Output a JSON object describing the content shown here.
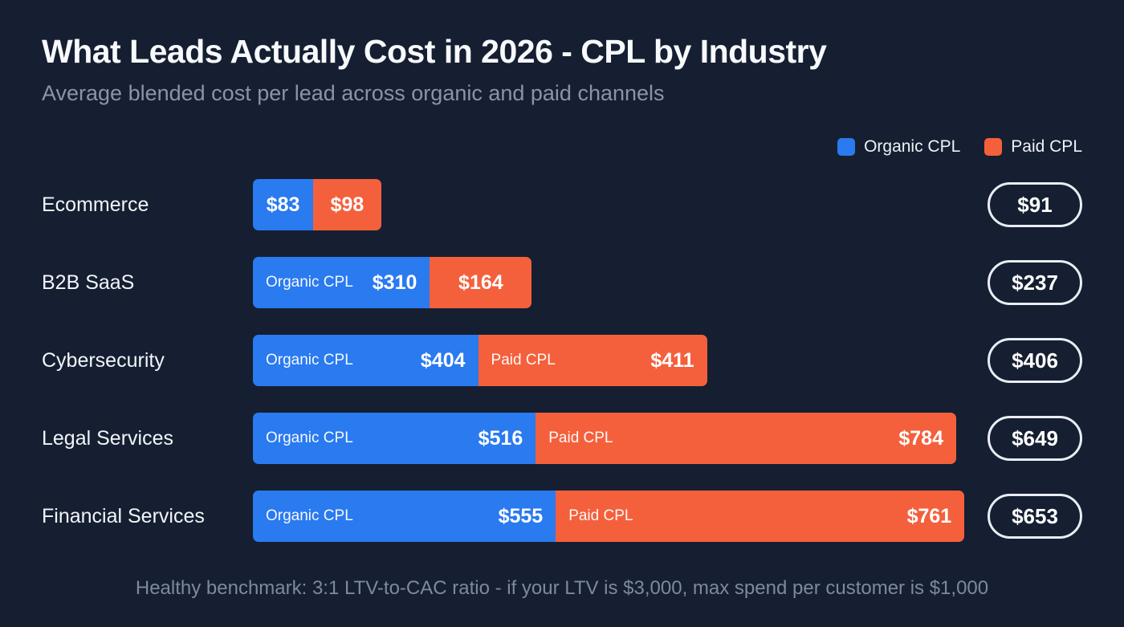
{
  "header": {
    "title": "What Leads Actually Cost in 2026 - CPL by Industry",
    "subtitle": "Average blended cost per lead across organic and paid channels"
  },
  "legend": [
    {
      "label": "Organic CPL",
      "color": "#2a7af0"
    },
    {
      "label": "Paid CPL",
      "color": "#f4603c"
    }
  ],
  "chart_data": {
    "type": "bar",
    "orientation": "horizontal",
    "stacked": true,
    "title": "What Leads Actually Cost in 2026 - CPL by Industry",
    "subtitle": "Average blended cost per lead across organic and paid channels",
    "categories": [
      "Ecommerce",
      "B2B SaaS",
      "Cybersecurity",
      "Legal Services",
      "Financial Services"
    ],
    "series": [
      {
        "name": "Organic CPL",
        "color": "#2a7af0",
        "values": [
          83,
          310,
          404,
          516,
          555
        ]
      },
      {
        "name": "Paid CPL",
        "color": "#f4603c",
        "values": [
          98,
          164,
          411,
          784,
          761
        ]
      }
    ],
    "blended_values": [
      91,
      237,
      406,
      649,
      653
    ],
    "segment_labels": {
      "organic": "Organic CPL",
      "paid": "Paid CPL"
    },
    "label_visibility": [
      {
        "organic": false,
        "paid": false
      },
      {
        "organic": true,
        "paid": false
      },
      {
        "organic": true,
        "paid": true
      },
      {
        "organic": true,
        "paid": true
      },
      {
        "organic": true,
        "paid": true
      }
    ],
    "value_prefix": "$",
    "legend_position": "top-right",
    "grid": false
  },
  "footer": {
    "note": "Healthy benchmark: 3:1 LTV-to-CAC ratio - if your LTV is $3,000, max spend per customer is $1,000"
  },
  "colors": {
    "background": "#151f31",
    "organic": "#2a7af0",
    "paid": "#f4603c"
  }
}
